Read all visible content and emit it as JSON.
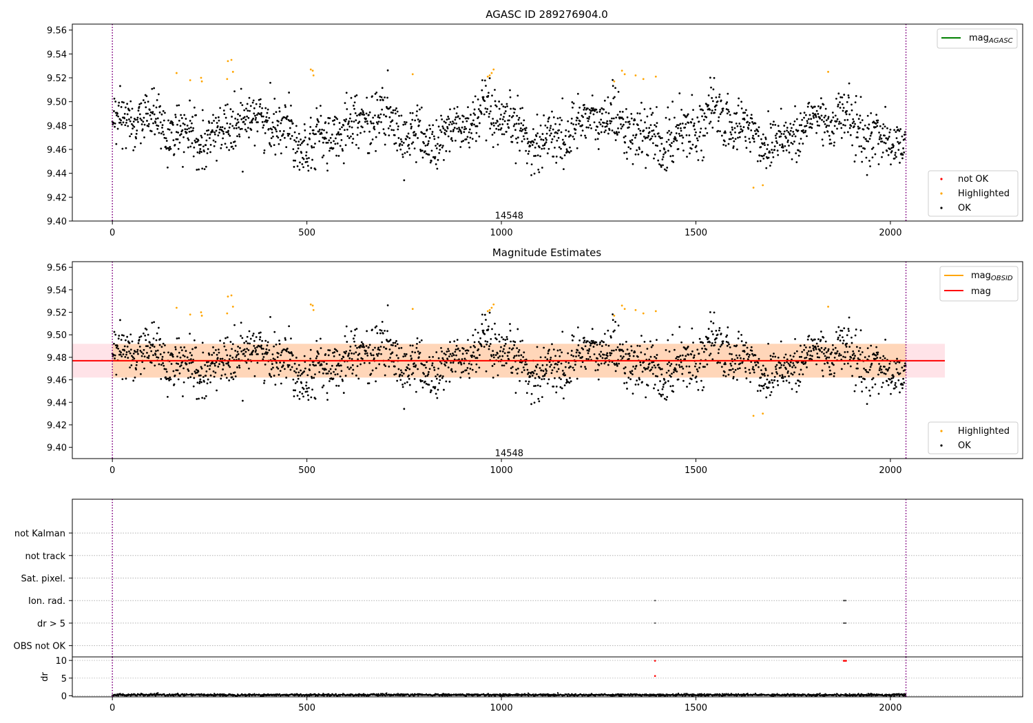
{
  "figure": {
    "top_title": "AGASC ID 289276904.0",
    "middle_title": "Magnitude Estimates",
    "obsid_label": "14548"
  },
  "colors": {
    "ok": "#000000",
    "highlighted": "#ffa500",
    "not_ok": "#ff0000",
    "mag_agasc": "#008000",
    "mag_obsid": "#ffa500",
    "mag": "#ff0000",
    "band": "#ffc0cb",
    "boundary": "#800080"
  },
  "chart_data": [
    {
      "id": "agasc",
      "type": "scatter",
      "title": "AGASC ID 289276904.0",
      "xlim": [
        -103,
        2340
      ],
      "ylim": [
        9.4,
        9.565
      ],
      "xticks": [
        0,
        500,
        1000,
        1500,
        2000
      ],
      "yticks": [
        9.4,
        9.42,
        9.44,
        9.46,
        9.48,
        9.5,
        9.52,
        9.54,
        9.56
      ],
      "ytick_labels": [
        "9.40",
        "9.42",
        "9.44",
        "9.46",
        "9.48",
        "9.50",
        "9.52",
        "9.54",
        "9.56"
      ],
      "obs_boundaries": [
        0,
        2040
      ],
      "annotation": {
        "text": "14548",
        "x": 1020,
        "y": 9.402
      },
      "line_legend": {
        "placement": "upper right",
        "entries": [
          {
            "label": "mag",
            "sub": "AGASC",
            "color": "#008000"
          }
        ]
      },
      "point_legend": {
        "placement": "lower right",
        "entries": [
          {
            "label": "not OK",
            "color": "#ff0000"
          },
          {
            "label": "Highlighted",
            "color": "#ffa500"
          },
          {
            "label": "OK",
            "color": "#000000"
          }
        ]
      },
      "series": {
        "ok": {
          "n": 2040,
          "x_range": [
            0,
            2040
          ],
          "center": 9.477,
          "spread": 0.015
        },
        "highlighted": [
          [
            165,
            9.524
          ],
          [
            200,
            9.518
          ],
          [
            228,
            9.52
          ],
          [
            230,
            9.517
          ],
          [
            295,
            9.519
          ],
          [
            297,
            9.534
          ],
          [
            306,
            9.535
          ],
          [
            310,
            9.525
          ],
          [
            510,
            9.527
          ],
          [
            515,
            9.526
          ],
          [
            517,
            9.522
          ],
          [
            772,
            9.523
          ],
          [
            965,
            9.521
          ],
          [
            970,
            9.522
          ],
          [
            975,
            9.524
          ],
          [
            980,
            9.527
          ],
          [
            1290,
            9.517
          ],
          [
            1310,
            9.526
          ],
          [
            1317,
            9.523
          ],
          [
            1345,
            9.522
          ],
          [
            1365,
            9.519
          ],
          [
            1397,
            9.521
          ],
          [
            1648,
            9.428
          ],
          [
            1672,
            9.43
          ],
          [
            1840,
            9.525
          ]
        ]
      }
    },
    {
      "id": "estimates",
      "type": "scatter",
      "title": "Magnitude Estimates",
      "xlim": [
        -103,
        2340
      ],
      "ylim": [
        9.39,
        9.565
      ],
      "xticks": [
        0,
        500,
        1000,
        1500,
        2000
      ],
      "yticks": [
        9.4,
        9.42,
        9.44,
        9.46,
        9.48,
        9.5,
        9.52,
        9.54,
        9.56
      ],
      "ytick_labels": [
        "9.40",
        "9.42",
        "9.44",
        "9.46",
        "9.48",
        "9.50",
        "9.52",
        "9.54",
        "9.56"
      ],
      "obs_boundaries": [
        0,
        2040
      ],
      "annotation": {
        "text": "14548",
        "x": 1020,
        "y": 9.392
      },
      "mag_line": {
        "value": 9.477,
        "x_range": [
          -103,
          2140
        ]
      },
      "mag_band": {
        "low": 9.462,
        "high": 9.492,
        "x_range": [
          -103,
          2140
        ]
      },
      "mag_obsid": {
        "value": 9.477,
        "x_range": [
          0,
          2040
        ]
      },
      "line_legend": {
        "placement": "upper right",
        "entries": [
          {
            "label": "mag",
            "sub": "OBSID",
            "color": "#ffa500"
          },
          {
            "label": "mag",
            "sub": "",
            "color": "#ff0000"
          }
        ]
      },
      "point_legend": {
        "placement": "lower right",
        "entries": [
          {
            "label": "Highlighted",
            "color": "#ffa500"
          },
          {
            "label": "OK",
            "color": "#000000"
          }
        ]
      }
    },
    {
      "id": "flags",
      "type": "scatter",
      "xlim": [
        -103,
        2340
      ],
      "ylim": [
        -0.5,
        6.5
      ],
      "categories": [
        "OBS not OK",
        "dr > 5",
        "Ion. rad.",
        "Sat. pixel.",
        "not track",
        "not Kalman"
      ],
      "points": [
        {
          "x": 1395,
          "category": "Ion. rad."
        },
        {
          "x": 1880,
          "category": "Ion. rad."
        },
        {
          "x": 1882,
          "category": "Ion. rad."
        },
        {
          "x": 1885,
          "category": "Ion. rad."
        },
        {
          "x": 1395,
          "category": "dr > 5"
        },
        {
          "x": 1880,
          "category": "dr > 5"
        },
        {
          "x": 1882,
          "category": "dr > 5"
        },
        {
          "x": 1885,
          "category": "dr > 5"
        }
      ],
      "obs_boundaries": [
        0,
        2040
      ]
    },
    {
      "id": "dr",
      "type": "scatter",
      "ylabel": "dr",
      "xlim": [
        -103,
        2340
      ],
      "ylim": [
        -0.3,
        11
      ],
      "xticks": [
        0,
        500,
        1000,
        1500,
        2000
      ],
      "yticks": [
        0,
        5,
        10
      ],
      "obs_boundaries": [
        0,
        2040
      ],
      "baseline": {
        "n": 2040,
        "mean": 0.25,
        "spread": 0.3
      },
      "flagged": [
        [
          1395,
          9.9
        ],
        [
          1395,
          5.6
        ],
        [
          1880,
          9.9
        ],
        [
          1883,
          9.9
        ],
        [
          1886,
          9.9
        ]
      ]
    }
  ]
}
